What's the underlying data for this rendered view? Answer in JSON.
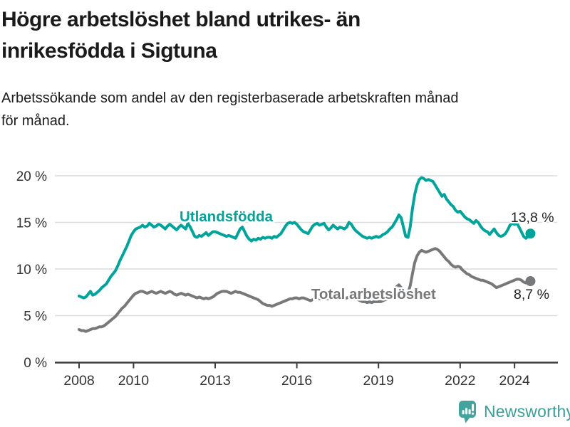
{
  "header": {
    "title": "Högre arbetslöshet bland utrikes- än\ninrikesfödda i Sigtuna",
    "subtitle": "Arbetssökande som andel av den registerbaserade arbetskraften månad\nför månad."
  },
  "chart_data": {
    "type": "line",
    "grid": "horizontal",
    "legend_position": "inline-labels",
    "x_tick_years": [
      2008,
      2010,
      2013,
      2016,
      2019,
      2022,
      2024
    ],
    "x_tick_labels": [
      "2008",
      "2010",
      "2013",
      "2016",
      "2019",
      "2022",
      "2024"
    ],
    "y_ticks": [
      0,
      5,
      10,
      15,
      20
    ],
    "y_tick_labels": [
      "0 %",
      "5 %",
      "10 %",
      "15 %",
      "20 %"
    ],
    "ylim": [
      0,
      21
    ],
    "xlim": [
      2007.1,
      2025.6
    ],
    "x_start": 2008.0,
    "x_step": 0.08333,
    "axis_color": "#3d3d3d",
    "grid_color": "#dcdcdc",
    "tick_label_color": "#333333",
    "value_label_color": "#222222",
    "series": [
      {
        "name": "Utlandsfödda",
        "color": "#00a49b",
        "end_label": "13,8 %",
        "label_pos": {
          "year": 2011.69,
          "value": 15.11
        },
        "end_label_pos": {
          "year": 2023.86,
          "value": 15.04
        },
        "values": [
          7.1,
          7.0,
          6.9,
          7.0,
          7.3,
          7.6,
          7.2,
          7.3,
          7.5,
          7.7,
          8.0,
          8.2,
          8.4,
          8.8,
          9.2,
          9.5,
          9.8,
          10.3,
          10.9,
          11.4,
          11.9,
          12.4,
          13.0,
          13.6,
          14.0,
          14.3,
          14.4,
          14.5,
          14.7,
          14.5,
          14.6,
          14.9,
          14.7,
          14.5,
          14.6,
          14.8,
          14.7,
          14.5,
          14.3,
          14.6,
          14.8,
          14.6,
          14.4,
          14.2,
          14.5,
          14.7,
          14.5,
          14.3,
          14.9,
          14.5,
          14.0,
          13.5,
          13.4,
          13.6,
          13.5,
          13.7,
          13.9,
          13.6,
          13.8,
          14.0,
          14.0,
          13.9,
          13.8,
          13.7,
          13.6,
          13.5,
          13.6,
          13.5,
          13.4,
          13.3,
          13.8,
          14.3,
          14.5,
          14.0,
          13.5,
          13.2,
          13.0,
          13.2,
          13.1,
          13.3,
          13.2,
          13.4,
          13.3,
          13.4,
          13.4,
          13.3,
          13.5,
          13.4,
          13.6,
          13.8,
          14.2,
          14.6,
          14.9,
          15.0,
          14.9,
          15.0,
          14.8,
          14.5,
          14.2,
          14.0,
          13.9,
          13.8,
          14.2,
          14.6,
          14.8,
          14.9,
          14.7,
          14.8,
          14.9,
          14.5,
          14.2,
          14.4,
          14.7,
          14.5,
          14.3,
          14.5,
          14.4,
          14.3,
          14.5,
          15.0,
          14.8,
          14.4,
          14.1,
          13.9,
          13.7,
          13.5,
          13.4,
          13.3,
          13.4,
          13.3,
          13.4,
          13.5,
          13.4,
          13.5,
          13.7,
          13.8,
          14.0,
          14.3,
          14.5,
          14.9,
          15.3,
          15.8,
          15.5,
          14.5,
          13.5,
          13.4,
          14.5,
          16.5,
          18.0,
          19.0,
          19.6,
          19.8,
          19.7,
          19.5,
          19.6,
          19.5,
          19.4,
          19.0,
          18.6,
          18.2,
          17.8,
          18.0,
          17.5,
          17.2,
          16.9,
          16.7,
          16.3,
          16.1,
          16.2,
          15.9,
          15.6,
          15.4,
          15.3,
          15.1,
          14.9,
          15.2,
          15.0,
          14.6,
          14.3,
          14.1,
          14.0,
          13.7,
          14.0,
          14.3,
          13.9,
          13.6,
          13.5,
          13.6,
          13.8,
          14.2,
          14.7,
          14.9,
          14.8,
          14.9,
          14.5,
          14.0,
          13.5,
          13.3,
          13.5,
          13.8
        ]
      },
      {
        "name": "Total arbetslöshet",
        "color": "#77787a",
        "end_label": "8,7 %",
        "label_pos": {
          "year": 2016.53,
          "value": 6.79
        },
        "end_label_pos": {
          "year": 2023.97,
          "value": 6.79
        },
        "values": [
          3.5,
          3.4,
          3.4,
          3.3,
          3.4,
          3.5,
          3.6,
          3.6,
          3.7,
          3.8,
          3.8,
          3.9,
          4.1,
          4.3,
          4.5,
          4.7,
          4.9,
          5.2,
          5.5,
          5.8,
          6.0,
          6.3,
          6.6,
          6.9,
          7.2,
          7.4,
          7.5,
          7.6,
          7.6,
          7.5,
          7.4,
          7.5,
          7.6,
          7.5,
          7.4,
          7.5,
          7.6,
          7.5,
          7.4,
          7.5,
          7.6,
          7.5,
          7.3,
          7.2,
          7.3,
          7.4,
          7.3,
          7.2,
          7.3,
          7.2,
          7.1,
          7.0,
          6.9,
          7.0,
          6.9,
          6.8,
          6.9,
          6.8,
          6.9,
          7.0,
          7.2,
          7.4,
          7.5,
          7.6,
          7.6,
          7.6,
          7.5,
          7.4,
          7.5,
          7.6,
          7.5,
          7.5,
          7.4,
          7.3,
          7.2,
          7.1,
          7.0,
          6.9,
          6.8,
          6.7,
          6.5,
          6.3,
          6.2,
          6.1,
          6.1,
          6.0,
          6.1,
          6.2,
          6.3,
          6.4,
          6.5,
          6.6,
          6.7,
          6.8,
          6.8,
          6.9,
          6.9,
          6.8,
          6.9,
          6.9,
          6.8,
          6.7,
          6.6,
          6.7,
          6.8,
          6.9,
          6.8,
          6.8,
          6.9,
          6.8,
          6.8,
          6.9,
          7.0,
          6.9,
          6.8,
          6.8,
          6.9,
          6.8,
          6.9,
          7.0,
          6.9,
          6.8,
          6.8,
          6.7,
          6.6,
          6.5,
          6.5,
          6.4,
          6.5,
          6.4,
          6.5,
          6.5,
          6.5,
          6.5,
          6.6,
          6.7,
          6.8,
          7.0,
          7.3,
          7.7,
          8.1,
          8.3,
          8.0,
          7.5,
          7.3,
          7.4,
          8.2,
          9.5,
          10.7,
          11.4,
          11.8,
          12.0,
          11.9,
          11.8,
          11.9,
          12.0,
          12.1,
          12.2,
          12.1,
          11.9,
          11.6,
          11.3,
          11.0,
          10.8,
          10.5,
          10.3,
          10.2,
          10.3,
          10.2,
          9.9,
          9.7,
          9.5,
          9.4,
          9.2,
          9.1,
          9.0,
          8.9,
          8.8,
          8.8,
          8.7,
          8.6,
          8.5,
          8.4,
          8.2,
          8.0,
          8.1,
          8.2,
          8.3,
          8.4,
          8.5,
          8.6,
          8.7,
          8.8,
          8.9,
          8.9,
          8.8,
          8.6,
          8.5,
          8.6,
          8.7
        ]
      }
    ]
  },
  "footer": {
    "brand": "Newsworthy",
    "brand_color": "#3b9e97",
    "icon_color": "#44a49d"
  }
}
